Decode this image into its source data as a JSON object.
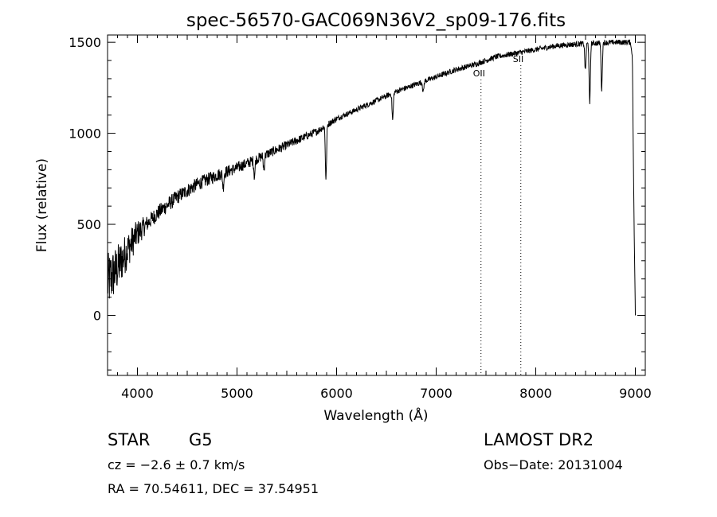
{
  "chart_data": {
    "type": "line",
    "title": "spec-56570-GAC069N36V2_sp09-176.fits",
    "xlabel": "Wavelength (Å)",
    "ylabel": "Flux (relative)",
    "xlim": [
      3700,
      9100
    ],
    "ylim": [
      -330,
      1540
    ],
    "x_ticks": [
      4000,
      5000,
      6000,
      7000,
      8000,
      9000
    ],
    "x_tick_labels": [
      "4000",
      "5000",
      "6000",
      "7000",
      "8000",
      "9000"
    ],
    "y_ticks": [
      0,
      500,
      1000,
      1500
    ],
    "y_tick_labels": [
      "0",
      "500",
      "1000",
      "1500"
    ],
    "grid": false,
    "line_color": "#000000",
    "continuum": {
      "x": [
        3700,
        3800,
        3900,
        4000,
        4200,
        4400,
        4600,
        4800,
        5000,
        5200,
        5400,
        5600,
        5800,
        6000,
        6200,
        6400,
        6600,
        6800,
        7000,
        7200,
        7400,
        7600,
        7800,
        8000,
        8200,
        8400,
        8600,
        8800,
        8950,
        8970,
        8985,
        9000
      ],
      "y": [
        180,
        260,
        360,
        450,
        560,
        650,
        720,
        770,
        810,
        860,
        910,
        960,
        1010,
        1080,
        1130,
        1180,
        1230,
        1270,
        1310,
        1350,
        1380,
        1420,
        1440,
        1460,
        1480,
        1490,
        1495,
        1500,
        1500,
        1420,
        600,
        0
      ]
    },
    "absorption_lines": [
      {
        "x": 5893,
        "depth": 300
      },
      {
        "x": 5270,
        "depth": 80
      },
      {
        "x": 5175,
        "depth": 90
      },
      {
        "x": 4861,
        "depth": 80
      },
      {
        "x": 6563,
        "depth": 150
      },
      {
        "x": 6870,
        "depth": 60
      },
      {
        "x": 8498,
        "depth": 150
      },
      {
        "x": 8542,
        "depth": 340
      },
      {
        "x": 8662,
        "depth": 260
      }
    ],
    "noise": {
      "start_x": 3700,
      "end_x": 4100,
      "max_amplitude": 320
    },
    "reference_lines": [
      {
        "label": "OII",
        "x": 7450
      },
      {
        "label": "SII",
        "x": 7850
      }
    ]
  },
  "info": {
    "object_class": "STAR",
    "subclass": "G5",
    "redshift": "cz = −2.6 ± 0.7 km/s",
    "coords": "RA =  70.54611, DEC =  37.54951",
    "survey": "LAMOST DR2",
    "obs_date": "Obs−Date: 20131004"
  }
}
